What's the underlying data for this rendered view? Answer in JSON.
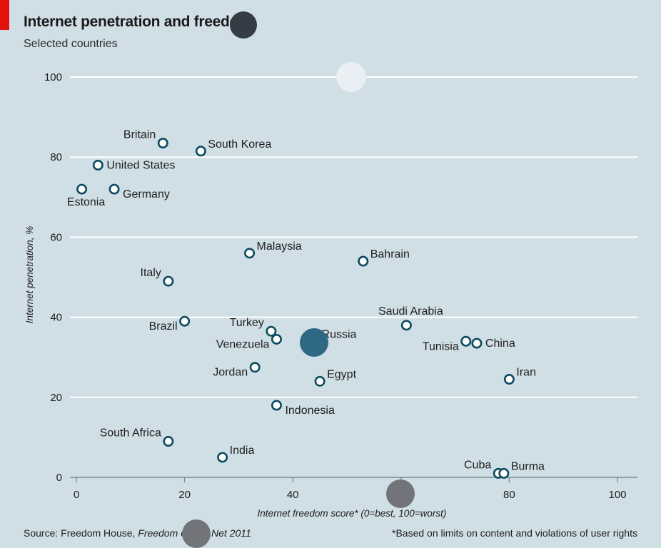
{
  "header": {
    "title": "Internet penetration and freedom",
    "subtitle": "Selected countries"
  },
  "source": {
    "prefix": "Source: Freedom House, ",
    "italic": "Freedom on the Net 2011"
  },
  "footnote": "*Based on limits on content and violations of user rights",
  "colors": {
    "background": "#d0dfe6",
    "gridline": "#ffffff",
    "marker_stroke": "#0e4a60",
    "marker_fill": "#ffffff",
    "accent_tag": "#e3120b",
    "text": "#1e1e1e"
  },
  "chart_data": {
    "type": "scatter",
    "title": "Internet penetration and freedom",
    "subtitle": "Selected countries",
    "xlabel": "Internet freedom score* (0=best, 100=worst)",
    "ylabel": "Internet penetration, %",
    "xlim": [
      0,
      100
    ],
    "ylim": [
      0,
      100
    ],
    "x_ticks": [
      0,
      20,
      40,
      60,
      80,
      100
    ],
    "y_ticks": [
      0,
      20,
      40,
      60,
      80,
      100
    ],
    "grid": "horizontal",
    "points": [
      {
        "label": "Britain",
        "x": 16,
        "y": 83.5,
        "label_pos": "upper-left"
      },
      {
        "label": "South Korea",
        "x": 23,
        "y": 81.5,
        "label_pos": "upper-right"
      },
      {
        "label": "United States",
        "x": 4,
        "y": 78,
        "label_pos": "right"
      },
      {
        "label": "Estonia",
        "x": 1,
        "y": 72,
        "label_pos": "below"
      },
      {
        "label": "Germany",
        "x": 7,
        "y": 72,
        "label_pos": "lower-right"
      },
      {
        "label": "Malaysia",
        "x": 32,
        "y": 56,
        "label_pos": "upper-right"
      },
      {
        "label": "Bahrain",
        "x": 53,
        "y": 54,
        "label_pos": "upper-right"
      },
      {
        "label": "Italy",
        "x": 17,
        "y": 49,
        "label_pos": "upper-left"
      },
      {
        "label": "Saudi Arabia",
        "x": 61,
        "y": 38,
        "label_pos": "above"
      },
      {
        "label": "Brazil",
        "x": 20,
        "y": 39,
        "label_pos": "lower-left"
      },
      {
        "label": "Turkey",
        "x": 36,
        "y": 36.5,
        "label_pos": "upper-left"
      },
      {
        "label": "Venezuela",
        "x": 37,
        "y": 34.5,
        "label_pos": "lower-left"
      },
      {
        "label": "Russia",
        "x": 44,
        "y": 34,
        "label_pos": "upper-right"
      },
      {
        "label": "Tunisia",
        "x": 72,
        "y": 34,
        "label_pos": "lower-left"
      },
      {
        "label": "China",
        "x": 74,
        "y": 33.5,
        "label_pos": "right"
      },
      {
        "label": "Jordan",
        "x": 33,
        "y": 27.5,
        "label_pos": "lower-left"
      },
      {
        "label": "Egypt",
        "x": 45,
        "y": 24,
        "label_pos": "upper-right"
      },
      {
        "label": "Iran",
        "x": 80,
        "y": 24.5,
        "label_pos": "upper-right"
      },
      {
        "label": "Indonesia",
        "x": 37,
        "y": 18,
        "label_pos": "lower-right"
      },
      {
        "label": "South Africa",
        "x": 17,
        "y": 9,
        "label_pos": "upper-left"
      },
      {
        "label": "India",
        "x": 27,
        "y": 5,
        "label_pos": "upper-right"
      },
      {
        "label": "Cuba",
        "x": 78,
        "y": 1,
        "label_pos": "upper-left"
      },
      {
        "label": "Burma",
        "x": 79,
        "y": 1,
        "label_pos": "upper-right"
      }
    ]
  }
}
